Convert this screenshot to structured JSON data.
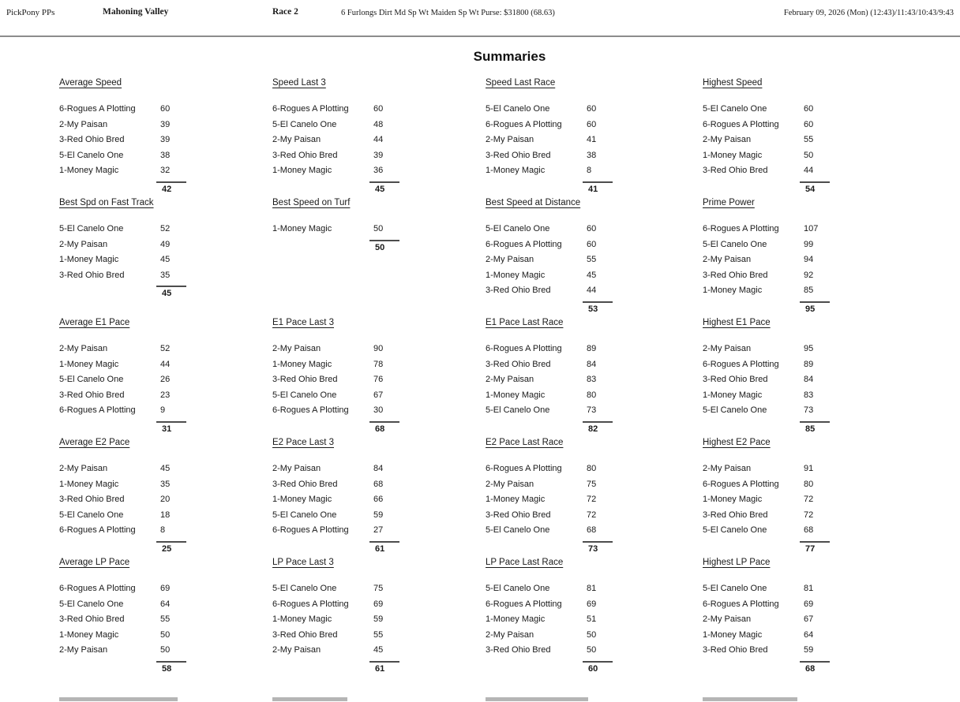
{
  "header": {
    "brand": "PickPony PPs",
    "track": "Mahoning Valley",
    "race": "Race 2",
    "conditions": "6 Furlongs Dirt Md Sp Wt Maiden Sp Wt Purse: $31800 (68.63)",
    "datetime": "February 09, 2026 (Mon) (12:43)/11:43/10:43/9:43"
  },
  "page_title": "Summaries",
  "has_clipped_next_row": true,
  "sections": [
    {
      "title": "Average Speed",
      "entries": [
        {
          "name": "6-Rogues A Plotting",
          "value": 60
        },
        {
          "name": "2-My Paisan",
          "value": 39
        },
        {
          "name": "3-Red Ohio Bred",
          "value": 39
        },
        {
          "name": "5-El Canelo One",
          "value": 38
        },
        {
          "name": "1-Money Magic",
          "value": 32
        }
      ],
      "total": 42
    },
    {
      "title": "Speed Last 3",
      "entries": [
        {
          "name": "6-Rogues A Plotting",
          "value": 60
        },
        {
          "name": "5-El Canelo One",
          "value": 48
        },
        {
          "name": "2-My Paisan",
          "value": 44
        },
        {
          "name": "3-Red Ohio Bred",
          "value": 39
        },
        {
          "name": "1-Money Magic",
          "value": 36
        }
      ],
      "total": 45
    },
    {
      "title": "Speed Last Race",
      "entries": [
        {
          "name": "5-El Canelo One",
          "value": 60
        },
        {
          "name": "6-Rogues A Plotting",
          "value": 60
        },
        {
          "name": "2-My Paisan",
          "value": 41
        },
        {
          "name": "3-Red Ohio Bred",
          "value": 38
        },
        {
          "name": "1-Money Magic",
          "value": 8
        }
      ],
      "total": 41
    },
    {
      "title": "Highest Speed",
      "entries": [
        {
          "name": "5-El Canelo One",
          "value": 60
        },
        {
          "name": "6-Rogues A Plotting",
          "value": 60
        },
        {
          "name": "2-My Paisan",
          "value": 55
        },
        {
          "name": "1-Money Magic",
          "value": 50
        },
        {
          "name": "3-Red Ohio Bred",
          "value": 44
        }
      ],
      "total": 54
    },
    {
      "title": "Best Spd on Fast Track",
      "entries": [
        {
          "name": "5-El Canelo One",
          "value": 52
        },
        {
          "name": "2-My Paisan",
          "value": 49
        },
        {
          "name": "1-Money Magic",
          "value": 45
        },
        {
          "name": "3-Red Ohio Bred",
          "value": 35
        }
      ],
      "total": 45
    },
    {
      "title": "Best Speed on Turf",
      "entries": [
        {
          "name": "1-Money Magic",
          "value": 50
        }
      ],
      "total": 50
    },
    {
      "title": "Best Speed at Distance",
      "entries": [
        {
          "name": "5-El Canelo One",
          "value": 60
        },
        {
          "name": "6-Rogues A Plotting",
          "value": 60
        },
        {
          "name": "2-My Paisan",
          "value": 55
        },
        {
          "name": "1-Money Magic",
          "value": 45
        },
        {
          "name": "3-Red Ohio Bred",
          "value": 44
        }
      ],
      "total": 53
    },
    {
      "title": "Prime Power",
      "entries": [
        {
          "name": "6-Rogues A Plotting",
          "value": 107
        },
        {
          "name": "5-El Canelo One",
          "value": 99
        },
        {
          "name": "2-My Paisan",
          "value": 94
        },
        {
          "name": "3-Red Ohio Bred",
          "value": 92
        },
        {
          "name": "1-Money Magic",
          "value": 85
        }
      ],
      "total": 95
    },
    {
      "title": "Average E1 Pace",
      "entries": [
        {
          "name": "2-My Paisan",
          "value": 52
        },
        {
          "name": "1-Money Magic",
          "value": 44
        },
        {
          "name": "5-El Canelo One",
          "value": 26
        },
        {
          "name": "3-Red Ohio Bred",
          "value": 23
        },
        {
          "name": "6-Rogues A Plotting",
          "value": 9
        }
      ],
      "total": 31
    },
    {
      "title": "E1 Pace Last 3",
      "entries": [
        {
          "name": "2-My Paisan",
          "value": 90
        },
        {
          "name": "1-Money Magic",
          "value": 78
        },
        {
          "name": "3-Red Ohio Bred",
          "value": 76
        },
        {
          "name": "5-El Canelo One",
          "value": 67
        },
        {
          "name": "6-Rogues A Plotting",
          "value": 30
        }
      ],
      "total": 68
    },
    {
      "title": "E1 Pace Last Race",
      "entries": [
        {
          "name": "6-Rogues A Plotting",
          "value": 89
        },
        {
          "name": "3-Red Ohio Bred",
          "value": 84
        },
        {
          "name": "2-My Paisan",
          "value": 83
        },
        {
          "name": "1-Money Magic",
          "value": 80
        },
        {
          "name": "5-El Canelo One",
          "value": 73
        }
      ],
      "total": 82
    },
    {
      "title": "Highest E1 Pace",
      "entries": [
        {
          "name": "2-My Paisan",
          "value": 95
        },
        {
          "name": "6-Rogues A Plotting",
          "value": 89
        },
        {
          "name": "3-Red Ohio Bred",
          "value": 84
        },
        {
          "name": "1-Money Magic",
          "value": 83
        },
        {
          "name": "5-El Canelo One",
          "value": 73
        }
      ],
      "total": 85
    },
    {
      "title": "Average E2 Pace",
      "entries": [
        {
          "name": "2-My Paisan",
          "value": 45
        },
        {
          "name": "1-Money Magic",
          "value": 35
        },
        {
          "name": "3-Red Ohio Bred",
          "value": 20
        },
        {
          "name": "5-El Canelo One",
          "value": 18
        },
        {
          "name": "6-Rogues A Plotting",
          "value": 8
        }
      ],
      "total": 25
    },
    {
      "title": "E2 Pace Last 3",
      "entries": [
        {
          "name": "2-My Paisan",
          "value": 84
        },
        {
          "name": "3-Red Ohio Bred",
          "value": 68
        },
        {
          "name": "1-Money Magic",
          "value": 66
        },
        {
          "name": "5-El Canelo One",
          "value": 59
        },
        {
          "name": "6-Rogues A Plotting",
          "value": 27
        }
      ],
      "total": 61
    },
    {
      "title": "E2 Pace Last Race",
      "entries": [
        {
          "name": "6-Rogues A Plotting",
          "value": 80
        },
        {
          "name": "2-My Paisan",
          "value": 75
        },
        {
          "name": "1-Money Magic",
          "value": 72
        },
        {
          "name": "3-Red Ohio Bred",
          "value": 72
        },
        {
          "name": "5-El Canelo One",
          "value": 68
        }
      ],
      "total": 73
    },
    {
      "title": "Highest E2 Pace",
      "entries": [
        {
          "name": "2-My Paisan",
          "value": 91
        },
        {
          "name": "6-Rogues A Plotting",
          "value": 80
        },
        {
          "name": "1-Money Magic",
          "value": 72
        },
        {
          "name": "3-Red Ohio Bred",
          "value": 72
        },
        {
          "name": "5-El Canelo One",
          "value": 68
        }
      ],
      "total": 77
    },
    {
      "title": "Average LP Pace",
      "entries": [
        {
          "name": "6-Rogues A Plotting",
          "value": 69
        },
        {
          "name": "5-El Canelo One",
          "value": 64
        },
        {
          "name": "3-Red Ohio Bred",
          "value": 55
        },
        {
          "name": "1-Money Magic",
          "value": 50
        },
        {
          "name": "2-My Paisan",
          "value": 50
        }
      ],
      "total": 58
    },
    {
      "title": "LP Pace Last 3",
      "entries": [
        {
          "name": "5-El Canelo One",
          "value": 75
        },
        {
          "name": "6-Rogues A Plotting",
          "value": 69
        },
        {
          "name": "1-Money Magic",
          "value": 59
        },
        {
          "name": "3-Red Ohio Bred",
          "value": 55
        },
        {
          "name": "2-My Paisan",
          "value": 45
        }
      ],
      "total": 61
    },
    {
      "title": "LP Pace Last Race",
      "entries": [
        {
          "name": "5-El Canelo One",
          "value": 81
        },
        {
          "name": "6-Rogues A Plotting",
          "value": 69
        },
        {
          "name": "1-Money Magic",
          "value": 51
        },
        {
          "name": "2-My Paisan",
          "value": 50
        },
        {
          "name": "3-Red Ohio Bred",
          "value": 50
        }
      ],
      "total": 60
    },
    {
      "title": "Highest LP Pace",
      "entries": [
        {
          "name": "5-El Canelo One",
          "value": 81
        },
        {
          "name": "6-Rogues A Plotting",
          "value": 69
        },
        {
          "name": "2-My Paisan",
          "value": 67
        },
        {
          "name": "1-Money Magic",
          "value": 64
        },
        {
          "name": "3-Red Ohio Bred",
          "value": 59
        }
      ],
      "total": 68
    }
  ]
}
